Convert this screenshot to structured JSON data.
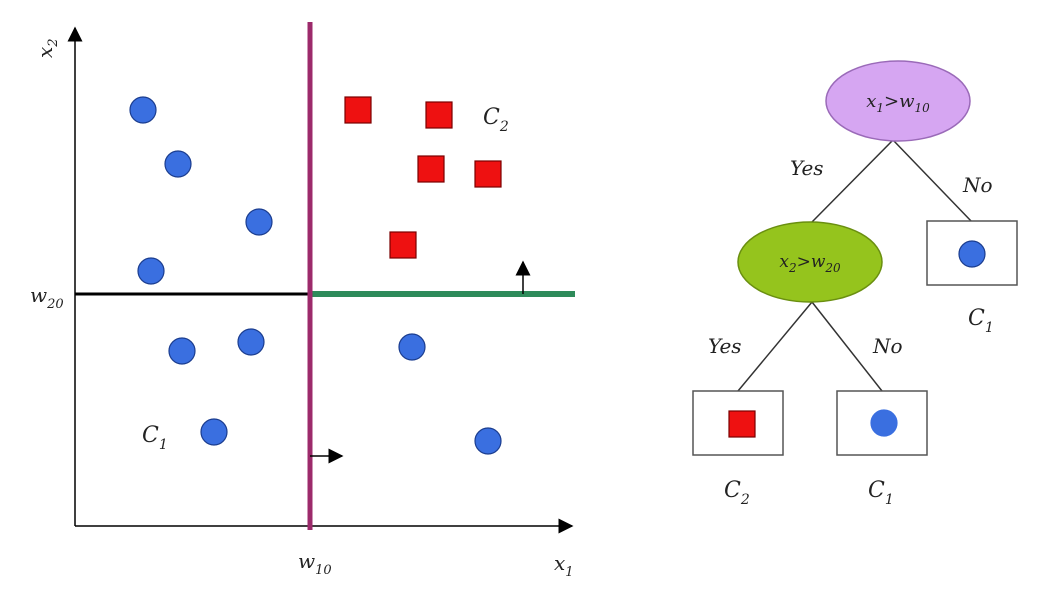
{
  "scatter": {
    "x_axis_label": "x",
    "x_axis_sub": "1",
    "y_axis_label": "x",
    "y_axis_sub": "2",
    "w10_label": "w",
    "w10_sub": "10",
    "w20_label": "w",
    "w20_sub": "20",
    "class1_label": "C",
    "class1_sub": "1",
    "class2_label": "C",
    "class2_sub": "2"
  },
  "tree": {
    "root": {
      "text": "x",
      "sub1": "1",
      "op": ">w",
      "sub2": "10"
    },
    "inner": {
      "text": "x",
      "sub1": "2",
      "op": ">w",
      "sub2": "20"
    },
    "root_yes": "Yes",
    "root_no": "No",
    "inner_yes": "Yes",
    "inner_no": "No",
    "leaf_right_label": "C",
    "leaf_right_sub": "1",
    "leaf_ll_label": "C",
    "leaf_ll_sub": "2",
    "leaf_lr_label": "C",
    "leaf_lr_sub": "1"
  },
  "colors": {
    "circle": "#3a6fe0",
    "square": "#ee1111",
    "root_node": "#d6a6f2",
    "inner_node": "#95c41d",
    "vertical_split": "#9c2a6b",
    "horizontal_split": "#2e8b5a"
  }
}
